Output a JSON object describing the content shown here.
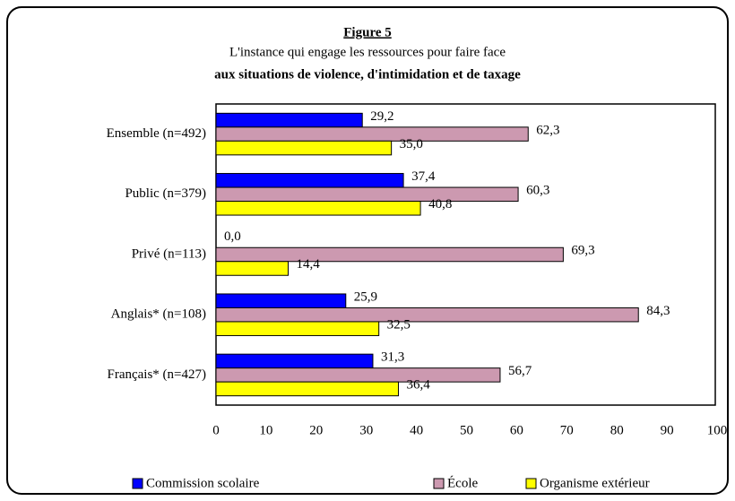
{
  "chart_data": {
    "type": "bar",
    "orientation": "horizontal",
    "title": "Figure 5",
    "subtitle": [
      "L'instance qui engage les ressources pour faire face",
      "aux situations de violence, d'intimidation et de taxage"
    ],
    "categories": [
      "Ensemble (n=492)",
      "Public (n=379)",
      "Privé (n=113)",
      "Anglais* (n=108)",
      "Français* (n=427)"
    ],
    "series": [
      {
        "name": "Commission scolaire",
        "color": "#0000ff",
        "values": [
          29.2,
          37.4,
          0.0,
          25.9,
          31.3
        ],
        "value_labels": [
          "29,2",
          "37,4",
          "0,0",
          "25,9",
          "31,3"
        ]
      },
      {
        "name": "École",
        "color": "#cc99b0",
        "values": [
          62.3,
          60.3,
          69.3,
          84.3,
          56.7
        ],
        "value_labels": [
          "62,3",
          "60,3",
          "69,3",
          "84,3",
          "56,7"
        ]
      },
      {
        "name": "Organisme extérieur",
        "color": "#ffff00",
        "values": [
          35.0,
          40.8,
          14.4,
          32.5,
          36.4
        ],
        "value_labels": [
          "35,0",
          "40,8",
          "14,4",
          "32,5",
          "36,4"
        ]
      }
    ],
    "xlim": [
      0,
      100
    ],
    "xticks": [
      0,
      10,
      20,
      30,
      40,
      50,
      60,
      70,
      80,
      90,
      100
    ],
    "legend": "bottom"
  }
}
